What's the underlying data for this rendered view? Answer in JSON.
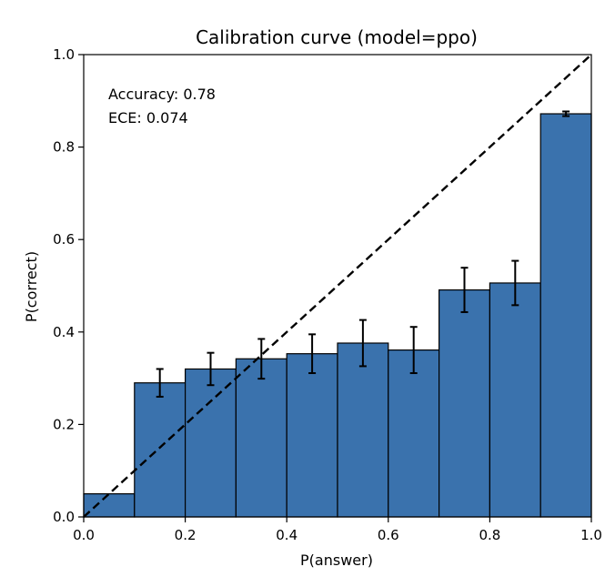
{
  "chart_data": {
    "type": "bar",
    "title": "Calibration curve (model=ppo)",
    "xlabel": "P(answer)",
    "ylabel": "P(correct)",
    "xlim": [
      0.0,
      1.0
    ],
    "ylim": [
      0.0,
      1.0
    ],
    "x_ticks": [
      "0.0",
      "0.2",
      "0.4",
      "0.6",
      "0.8",
      "1.0"
    ],
    "y_ticks": [
      "0.0",
      "0.2",
      "0.4",
      "0.6",
      "0.8",
      "1.0"
    ],
    "bin_edges": [
      0.0,
      0.1,
      0.2,
      0.3,
      0.4,
      0.5,
      0.6,
      0.7,
      0.8,
      0.9,
      1.0
    ],
    "values": [
      0.05,
      0.29,
      0.32,
      0.342,
      0.353,
      0.376,
      0.361,
      0.491,
      0.506,
      0.872
    ],
    "error": [
      null,
      0.03,
      0.035,
      0.043,
      0.042,
      0.05,
      0.05,
      0.048,
      0.048,
      0.005
    ],
    "bar_color": "#3a72ad",
    "edge_color": "#000000",
    "diagonal": {
      "from": [
        0,
        0
      ],
      "to": [
        1,
        1
      ],
      "style": "dashed",
      "color": "#000000"
    },
    "annotations": [
      "Accuracy: 0.78",
      "ECE: 0.074"
    ],
    "grid": false
  }
}
